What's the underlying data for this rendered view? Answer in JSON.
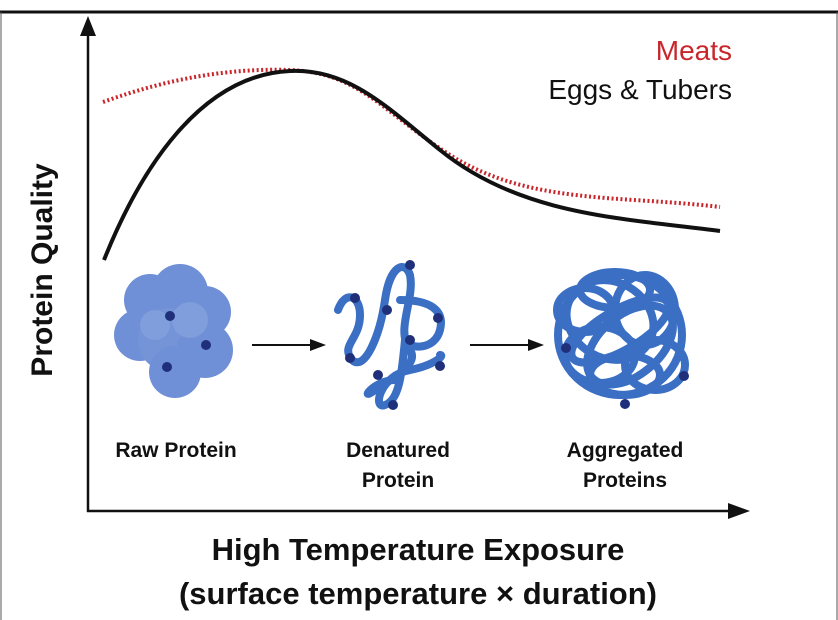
{
  "legend": {
    "meats": "Meats",
    "eggs_tubers": "Eggs & Tubers",
    "meats_color": "#c8262b",
    "eggs_color": "#111111"
  },
  "axes": {
    "ylabel": "Protein Quality",
    "xlabel_line1": "High Temperature Exposure",
    "xlabel_line2": "(surface temperature × duration)"
  },
  "stages": [
    {
      "line1": "Raw Protein",
      "line2": ""
    },
    {
      "line1": "Denatured",
      "line2": "Protein"
    },
    {
      "line1": "Aggregated",
      "line2": "Proteins"
    }
  ],
  "colors": {
    "protein": "#3a6fc4",
    "raw_protein": "#6f8fd6",
    "dot": "#1f2f7a"
  }
}
